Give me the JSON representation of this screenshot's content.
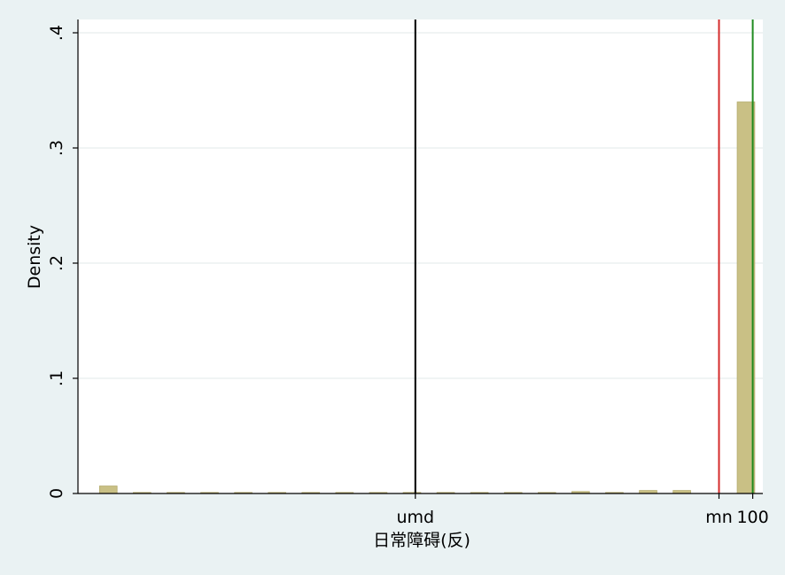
{
  "chart_data": {
    "type": "bar",
    "subtype": "histogram",
    "ylabel": "Density",
    "xlabel": "日常障碍(反)",
    "ylim": [
      0,
      0.4
    ],
    "yticks": [
      {
        "value": 0,
        "label": "0"
      },
      {
        "value": 0.1,
        "label": ".1"
      },
      {
        "value": 0.2,
        "label": ".2"
      },
      {
        "value": 0.3,
        "label": ".3"
      },
      {
        "value": 0.4,
        "label": ".4"
      }
    ],
    "xticks": [
      {
        "value": 50,
        "label": "umd"
      },
      {
        "value": 95,
        "label": "mn"
      },
      {
        "value": 100,
        "label": "100"
      }
    ],
    "xlim": [
      0,
      101.5
    ],
    "bins": [
      {
        "x": 4.5,
        "value": 0.0065
      },
      {
        "x": 9.5,
        "value": 0.0009
      },
      {
        "x": 14.5,
        "value": 0.0009
      },
      {
        "x": 19.5,
        "value": 0.0009
      },
      {
        "x": 24.5,
        "value": 0.0009
      },
      {
        "x": 29.5,
        "value": 0.0009
      },
      {
        "x": 34.5,
        "value": 0.0009
      },
      {
        "x": 39.5,
        "value": 0.0009
      },
      {
        "x": 44.5,
        "value": 0.0009
      },
      {
        "x": 49.5,
        "value": 0.0009
      },
      {
        "x": 54.5,
        "value": 0.0009
      },
      {
        "x": 59.5,
        "value": 0.0009
      },
      {
        "x": 64.5,
        "value": 0.0009
      },
      {
        "x": 69.5,
        "value": 0.0009
      },
      {
        "x": 74.5,
        "value": 0.0017
      },
      {
        "x": 79.5,
        "value": 0.0009
      },
      {
        "x": 84.5,
        "value": 0.0026
      },
      {
        "x": 89.5,
        "value": 0.0026
      },
      {
        "x": 99,
        "value": 0.34
      }
    ],
    "bin_width": 2.6,
    "reference_lines": [
      {
        "value": 50,
        "color": "#000000"
      },
      {
        "value": 95,
        "color": "#d42c2c"
      },
      {
        "value": 100,
        "color": "#1e8a1e"
      }
    ],
    "colors": {
      "bar_fill": "#c9c085",
      "bar_stroke": "#b4ab6d",
      "plot_bg": "#ffffff",
      "outer_bg": "#eaf2f3",
      "grid": "#e6eeee"
    },
    "grid": true,
    "legend": "none"
  }
}
